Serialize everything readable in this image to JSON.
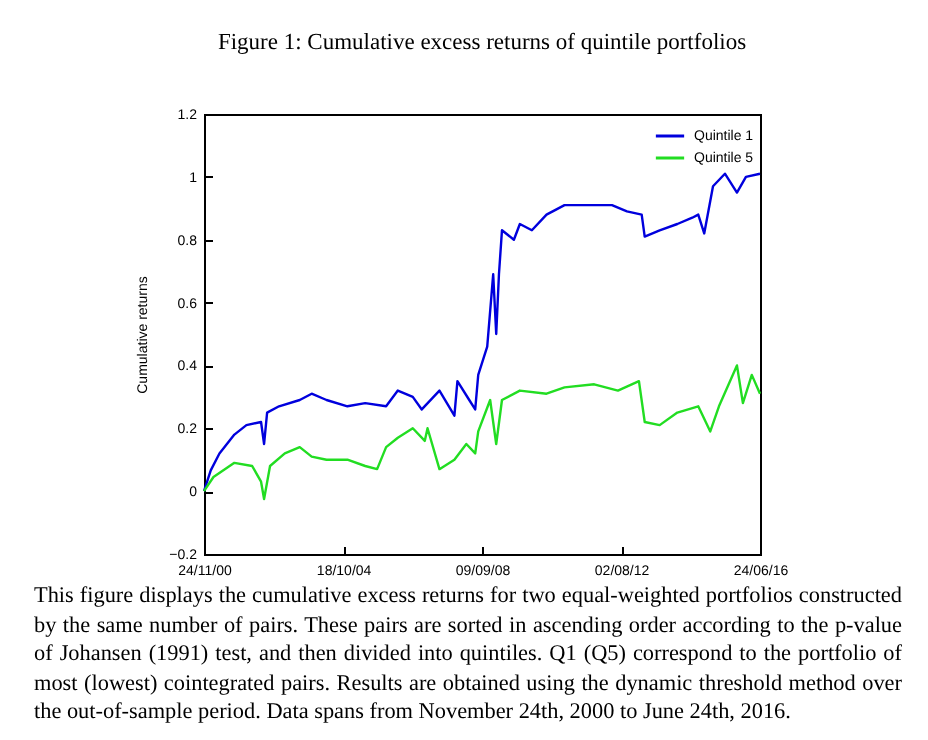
{
  "chart_data": {
    "type": "line",
    "title": "Figure 1: Cumulative excess returns of quintile portfolios",
    "ylabel": "Cumulative returns",
    "xlim": [
      "2000-11-24",
      "2016-06-24"
    ],
    "xticks": [
      {
        "value": "2000-11-24",
        "label": "24/11/00"
      },
      {
        "value": "2004-10-18",
        "label": "18/10/04"
      },
      {
        "value": "2008-09-09",
        "label": "09/09/08"
      },
      {
        "value": "2012-08-02",
        "label": "02/08/12"
      },
      {
        "value": "2016-06-24",
        "label": "24/06/16"
      }
    ],
    "ylim": [
      -0.2,
      1.2
    ],
    "yticks": [
      -0.2,
      0,
      0.2,
      0.4,
      0.6,
      0.8,
      1,
      1.2
    ],
    "grid": false,
    "legend": "top right",
    "series": [
      {
        "name": "Quintile 1",
        "color": "#0000dd",
        "x": [
          "2000-11-24",
          "2001-02",
          "2001-05",
          "2001-10",
          "2002-02",
          "2002-07",
          "2002-08",
          "2002-09",
          "2003-01",
          "2003-08",
          "2003-12",
          "2004-05",
          "2004-12",
          "2005-06",
          "2006-01",
          "2006-05",
          "2006-10",
          "2007-01",
          "2007-07",
          "2007-12",
          "2008-01",
          "2008-05",
          "2008-07",
          "2008-08",
          "2008-11",
          "2009-01",
          "2009-02",
          "2009-03",
          "2009-04",
          "2009-08",
          "2009-10",
          "2010-02",
          "2010-07",
          "2011-01",
          "2011-11",
          "2012-05",
          "2012-10",
          "2013-03",
          "2013-04",
          "2013-09",
          "2014-03",
          "2014-08",
          "2014-10",
          "2014-12",
          "2015-03",
          "2015-05",
          "2015-07",
          "2015-11",
          "2016-02",
          "2016-06-24"
        ],
        "values": [
          0,
          0.066,
          0.12,
          0.18,
          0.21,
          0.22,
          0.15,
          0.25,
          0.27,
          0.29,
          0.31,
          0.29,
          0.27,
          0.28,
          0.27,
          0.32,
          0.3,
          0.26,
          0.32,
          0.24,
          0.35,
          0.29,
          0.26,
          0.37,
          0.46,
          0.69,
          0.5,
          0.69,
          0.83,
          0.8,
          0.85,
          0.83,
          0.88,
          0.91,
          0.91,
          0.91,
          0.89,
          0.88,
          0.81,
          0.83,
          0.85,
          0.87,
          0.88,
          0.82,
          0.97,
          0.99,
          1.01,
          0.95,
          1,
          1.01
        ]
      },
      {
        "name": "Quintile 5",
        "color": "#22dd22",
        "x": [
          "2000-11-24",
          "2001-03",
          "2001-10",
          "2002-04",
          "2002-07",
          "2002-08",
          "2002-10",
          "2003-03",
          "2003-08",
          "2003-12",
          "2004-05",
          "2004-12",
          "2005-06",
          "2005-10",
          "2006-01",
          "2006-05",
          "2006-10",
          "2007-02",
          "2007-03",
          "2007-07",
          "2007-12",
          "2008-04",
          "2008-07",
          "2008-08",
          "2008-12",
          "2009-02",
          "2009-04",
          "2009-10",
          "2010-07",
          "2011-01",
          "2011-11",
          "2012-07",
          "2013-02",
          "2013-04",
          "2013-09",
          "2014-03",
          "2014-10",
          "2015-02",
          "2015-05",
          "2015-11",
          "2016-01",
          "2016-04",
          "2016-06-24"
        ],
        "values": [
          0,
          0.045,
          0.09,
          0.08,
          0.03,
          -0.025,
          0.08,
          0.12,
          0.14,
          0.11,
          0.1,
          0.1,
          0.08,
          0.07,
          0.14,
          0.17,
          0.2,
          0.16,
          0.2,
          0.07,
          0.1,
          0.15,
          0.12,
          0.19,
          0.29,
          0.15,
          0.29,
          0.32,
          0.31,
          0.33,
          0.34,
          0.32,
          0.35,
          0.22,
          0.21,
          0.25,
          0.27,
          0.19,
          0.27,
          0.4,
          0.28,
          0.37,
          0.31
        ]
      }
    ],
    "annotations": [
      "This figure displays the cumulative excess returns for two equal-weighted portfolios constructed by the same number of pairs. These pairs are sorted in ascending order according to the p-value of Johansen (1991) test, and then divided into quintiles. Q1 (Q5) correspond to the portfolio of most (lowest) cointegrated pairs. Results are obtained using the dynamic threshold method over the out-of-sample period. Data spans from November 24th, 2000 to June 24th, 2016."
    ]
  }
}
